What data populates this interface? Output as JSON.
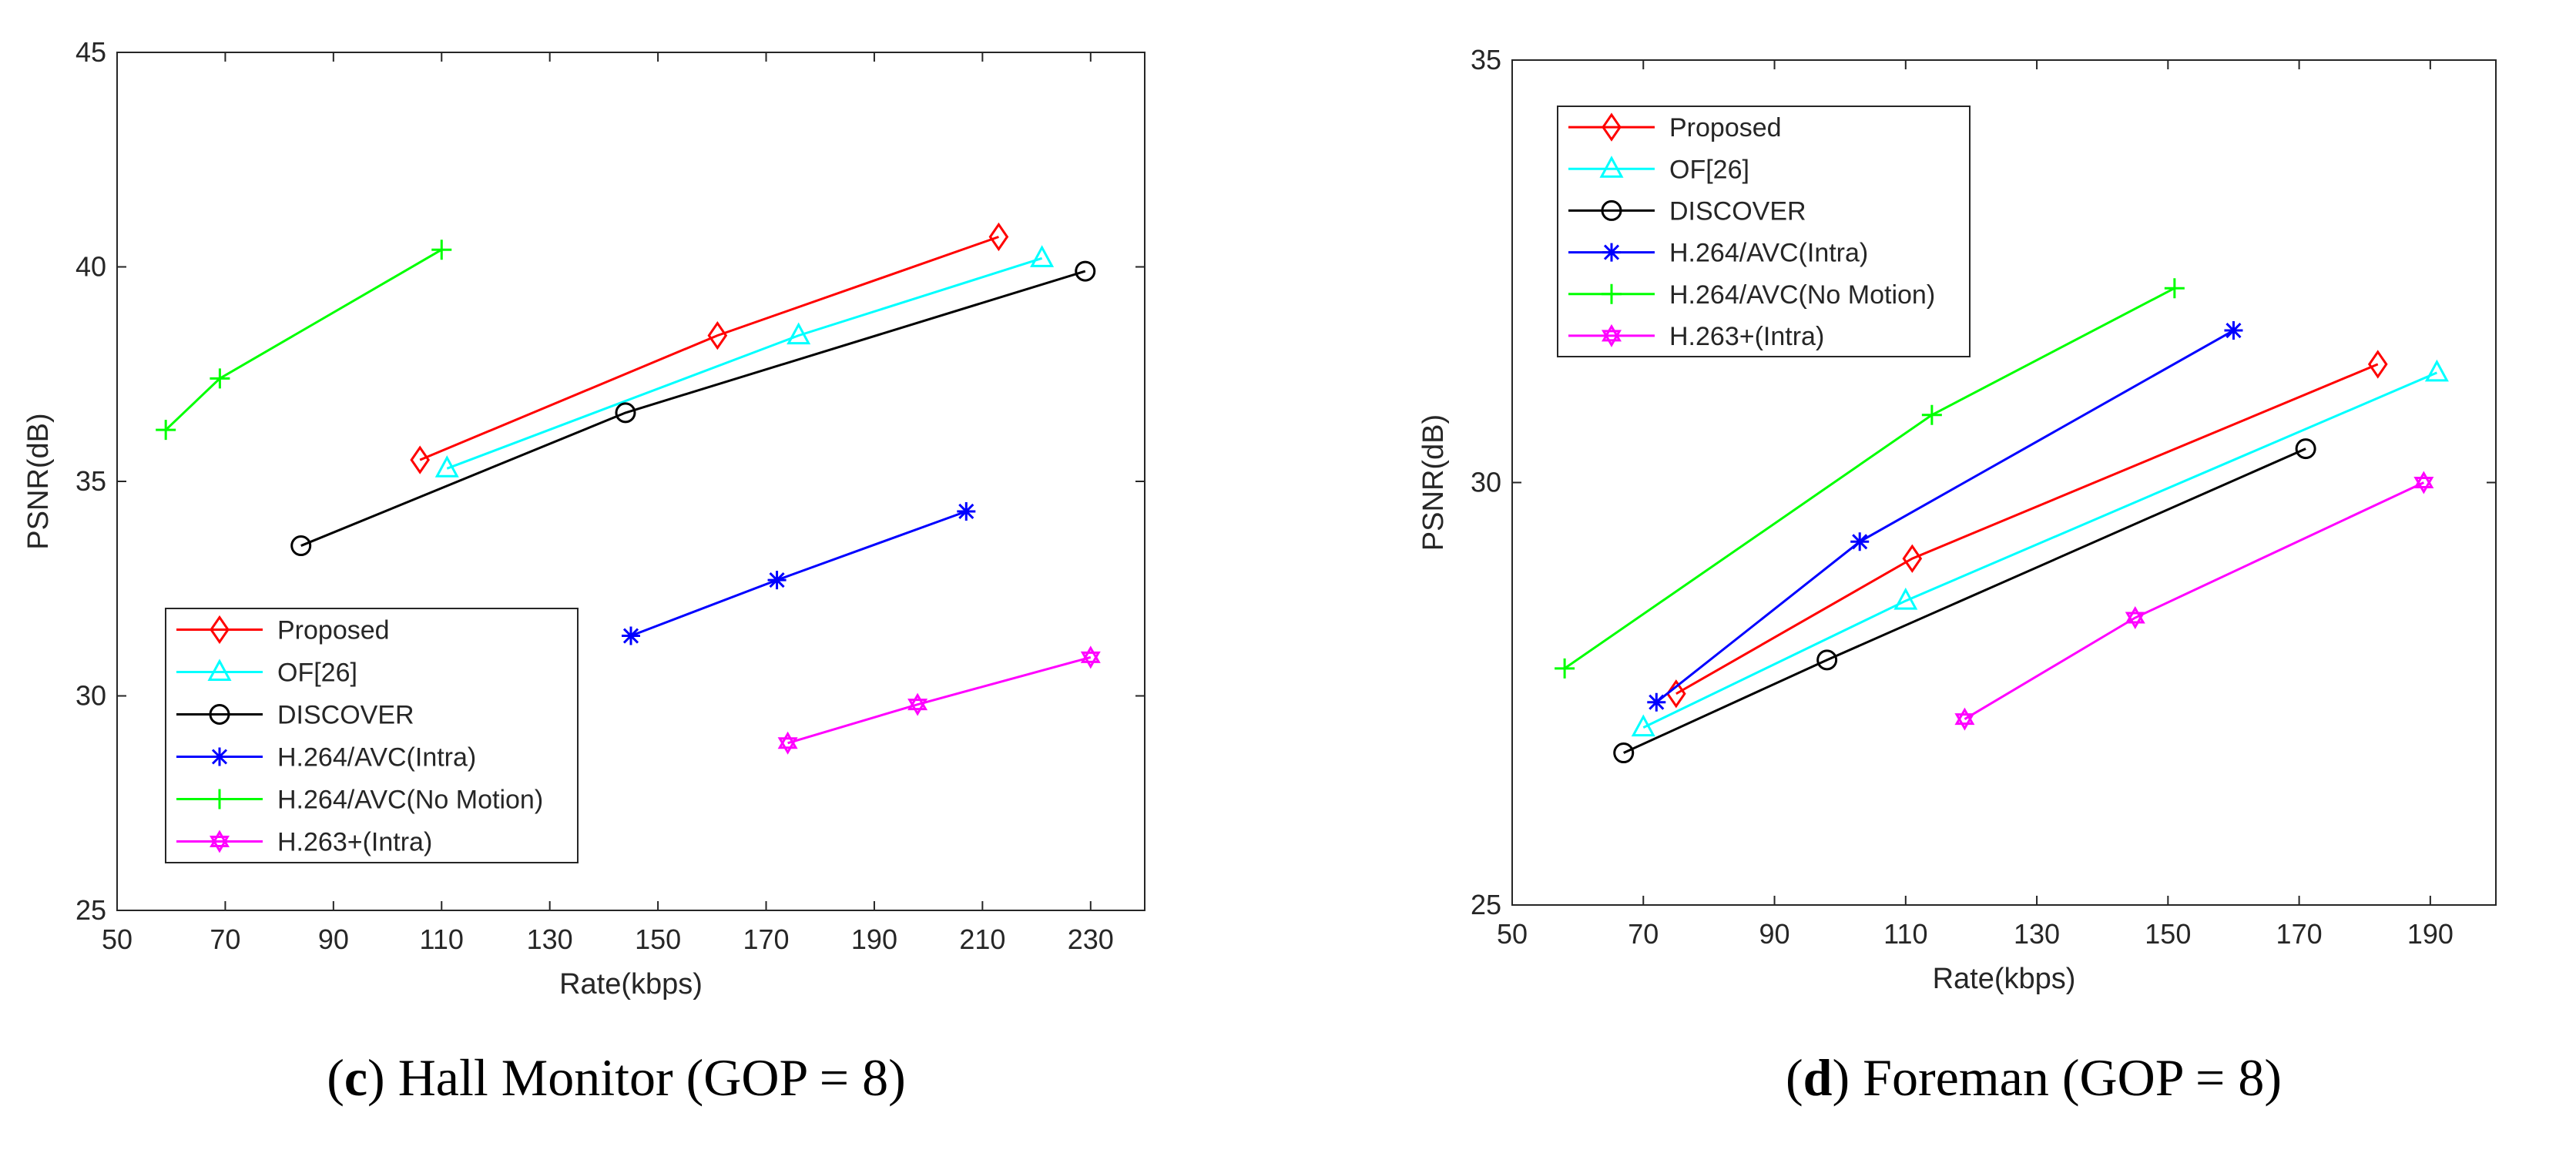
{
  "chart_data": [
    {
      "type": "line",
      "caption_label": "c",
      "caption_text": "Hall Monitor (GOP = 8)",
      "xlabel": "Rate(kbps)",
      "ylabel": "PSNR(dB)",
      "xlim": [
        50,
        240
      ],
      "ylim": [
        25,
        45
      ],
      "xticks": [
        50,
        70,
        90,
        110,
        130,
        150,
        170,
        190,
        210,
        230
      ],
      "yticks": [
        25,
        30,
        35,
        40,
        45
      ],
      "legend_position": "bottom-left",
      "series": [
        {
          "name": "Proposed",
          "color": "#ff0000",
          "marker": "diamond",
          "x": [
            106,
            161,
            213
          ],
          "y": [
            35.5,
            38.4,
            40.7
          ]
        },
        {
          "name": "OF[26]",
          "color": "#00ffff",
          "marker": "triangle",
          "x": [
            111,
            176,
            221
          ],
          "y": [
            35.3,
            38.4,
            40.2
          ]
        },
        {
          "name": "DISCOVER",
          "color": "#000000",
          "marker": "circle",
          "x": [
            84,
            144,
            229
          ],
          "y": [
            33.5,
            36.6,
            39.9
          ]
        },
        {
          "name": "H.264/AVC(Intra)",
          "color": "#0000ff",
          "marker": "asterisk",
          "x": [
            145,
            172,
            207
          ],
          "y": [
            31.4,
            32.7,
            34.3
          ]
        },
        {
          "name": "H.264/AVC(No Motion)",
          "color": "#00ff00",
          "marker": "plus",
          "x": [
            59,
            69,
            110
          ],
          "y": [
            36.2,
            37.4,
            40.4
          ]
        },
        {
          "name": "H.263+(Intra)",
          "color": "#ff00ff",
          "marker": "hexagram",
          "x": [
            174,
            198,
            230
          ],
          "y": [
            28.9,
            29.8,
            30.9
          ]
        }
      ]
    },
    {
      "type": "line",
      "caption_label": "d",
      "caption_text": "Foreman (GOP = 8)",
      "xlabel": "Rate(kbps)",
      "ylabel": "PSNR(dB)",
      "xlim": [
        50,
        200
      ],
      "ylim": [
        25,
        35
      ],
      "xticks": [
        50,
        70,
        90,
        110,
        130,
        150,
        170,
        190
      ],
      "yticks": [
        25,
        30,
        35
      ],
      "legend_position": "top-left",
      "series": [
        {
          "name": "Proposed",
          "color": "#ff0000",
          "marker": "diamond",
          "x": [
            75,
            111,
            182
          ],
          "y": [
            27.5,
            29.1,
            31.4
          ]
        },
        {
          "name": "OF[26]",
          "color": "#00ffff",
          "marker": "triangle",
          "x": [
            70,
            110,
            191
          ],
          "y": [
            27.1,
            28.6,
            31.3
          ]
        },
        {
          "name": "DISCOVER",
          "color": "#000000",
          "marker": "circle",
          "x": [
            67,
            98,
            171
          ],
          "y": [
            26.8,
            27.9,
            30.4
          ]
        },
        {
          "name": "H.264/AVC(Intra)",
          "color": "#0000ff",
          "marker": "asterisk",
          "x": [
            72,
            103,
            160
          ],
          "y": [
            27.4,
            29.3,
            31.8
          ]
        },
        {
          "name": "H.264/AVC(No Motion)",
          "color": "#00ff00",
          "marker": "plus",
          "x": [
            58,
            114,
            151
          ],
          "y": [
            27.8,
            30.8,
            32.3
          ]
        },
        {
          "name": "H.263+(Intra)",
          "color": "#ff00ff",
          "marker": "hexagram",
          "x": [
            119,
            145,
            189
          ],
          "y": [
            27.2,
            28.4,
            30.0
          ]
        }
      ]
    }
  ]
}
